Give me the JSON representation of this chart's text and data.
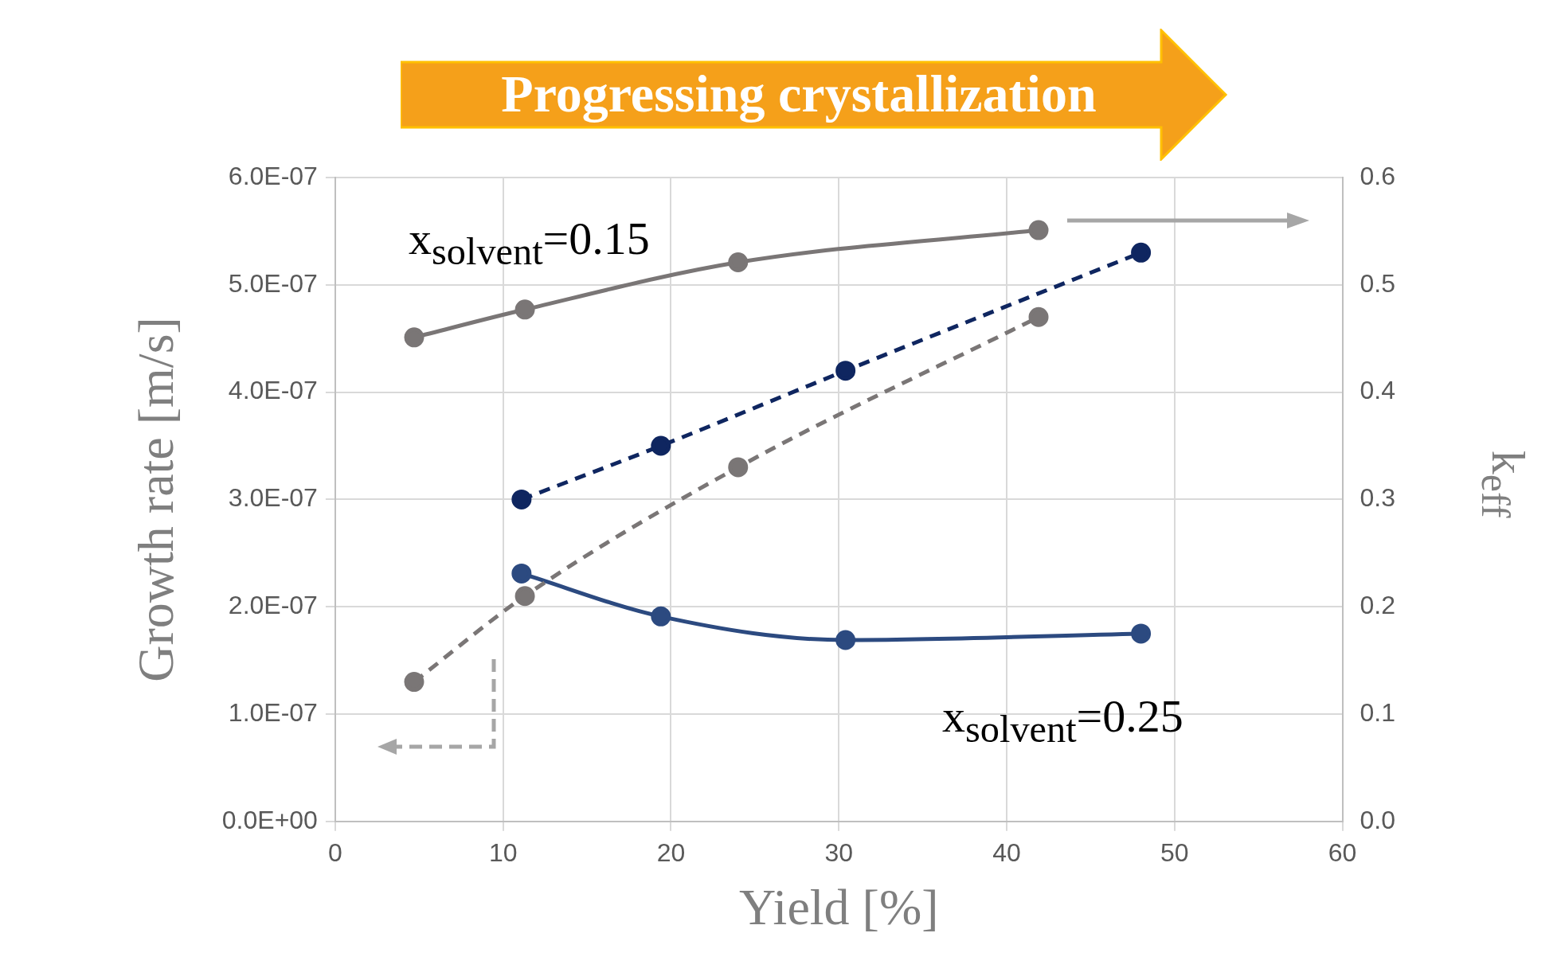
{
  "chart_data": {
    "type": "line",
    "xlabel": "Yield [%]",
    "ylabel": "Growth rate [m/s]",
    "y2label": "k$_{eff}$",
    "annotations": [
      "Progressing crystallization",
      "x$_{solvent}$=0.15",
      "x$_{solvent}$=0.25"
    ],
    "xlim": [
      0,
      60
    ],
    "xticks": [
      0,
      10,
      20,
      30,
      40,
      50,
      60
    ],
    "ylim": [
      0,
      6e-07
    ],
    "yticks": [
      {
        "value": 0,
        "label": "0.0E+00"
      },
      {
        "value": 1e-07,
        "label": "1.0E-07"
      },
      {
        "value": 2e-07,
        "label": "2.0E-07"
      },
      {
        "value": 3e-07,
        "label": "3.0E-07"
      },
      {
        "value": 4e-07,
        "label": "4.0E-07"
      },
      {
        "value": 5e-07,
        "label": "5.0E-07"
      },
      {
        "value": 6e-07,
        "label": "6.0E-07"
      }
    ],
    "y2lim": [
      0,
      0.6
    ],
    "y2ticks": [
      {
        "value": 0,
        "label": "0.0"
      },
      {
        "value": 0.1,
        "label": "0.1"
      },
      {
        "value": 0.2,
        "label": "0.2"
      },
      {
        "value": 0.3,
        "label": "0.3"
      },
      {
        "value": 0.4,
        "label": "0.4"
      },
      {
        "value": 0.5,
        "label": "0.5"
      },
      {
        "value": 0.6,
        "label": "0.6"
      }
    ],
    "grid": true,
    "legend": false,
    "marker": "circle",
    "series": [
      {
        "color": "#7a7676",
        "axis": "y2",
        "line_style": "solid",
        "x": [
          4.7,
          11.3,
          24.0,
          41.9
        ],
        "values": [
          0.451,
          0.477,
          0.521,
          0.551
        ]
      },
      {
        "color": "#0f2660",
        "axis": "y",
        "line_style": "dashed",
        "x": [
          11.1,
          19.4,
          30.4,
          48.0
        ],
        "values": [
          3e-07,
          3.5e-07,
          4.2e-07,
          5.3e-07
        ]
      },
      {
        "color": "#7a7676",
        "axis": "y",
        "line_style": "dashed",
        "x": [
          4.7,
          11.3,
          24.0,
          41.9
        ],
        "values": [
          1.3e-07,
          2.1e-07,
          3.3e-07,
          4.7e-07
        ]
      },
      {
        "color": "#2c4a80",
        "axis": "y2",
        "line_style": "solid",
        "x": [
          11.1,
          19.4,
          30.4,
          48.0
        ],
        "values": [
          0.231,
          0.191,
          0.169,
          0.175
        ]
      }
    ]
  }
}
